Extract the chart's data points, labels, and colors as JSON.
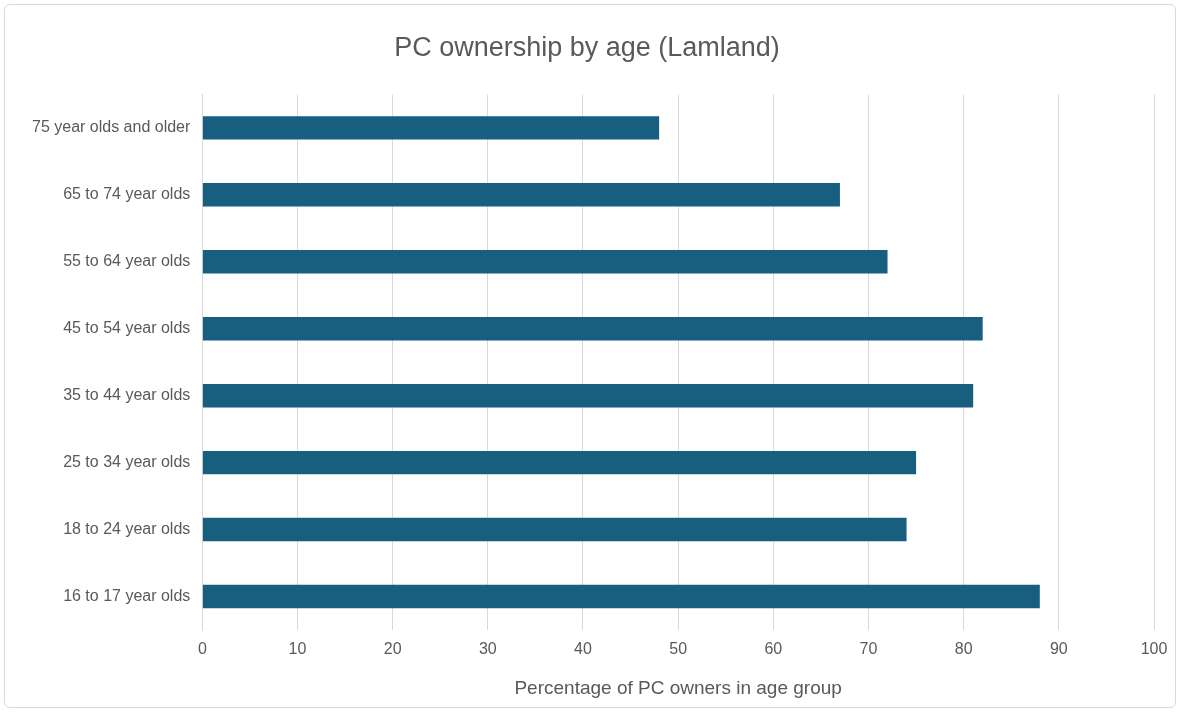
{
  "chart_data": {
    "type": "bar",
    "orientation": "horizontal",
    "title": "PC ownership by age (Lamland)",
    "xlabel": "Percentage of PC owners in age group",
    "categories": [
      "75 year olds and older",
      "65 to 74 year olds",
      "55 to 64 year olds",
      "45 to 54 year olds",
      "35 to 44 year olds",
      "25 to 34 year olds",
      "18 to 24 year olds",
      "16 to 17 year olds"
    ],
    "values": [
      48,
      67,
      72,
      82,
      81,
      75,
      74,
      88
    ],
    "color": "#185f7f",
    "xlim": [
      0,
      100
    ],
    "xticks": [
      0,
      10,
      20,
      30,
      40,
      50,
      60,
      70,
      80,
      90,
      100
    ],
    "grid": "x",
    "legend": false
  }
}
